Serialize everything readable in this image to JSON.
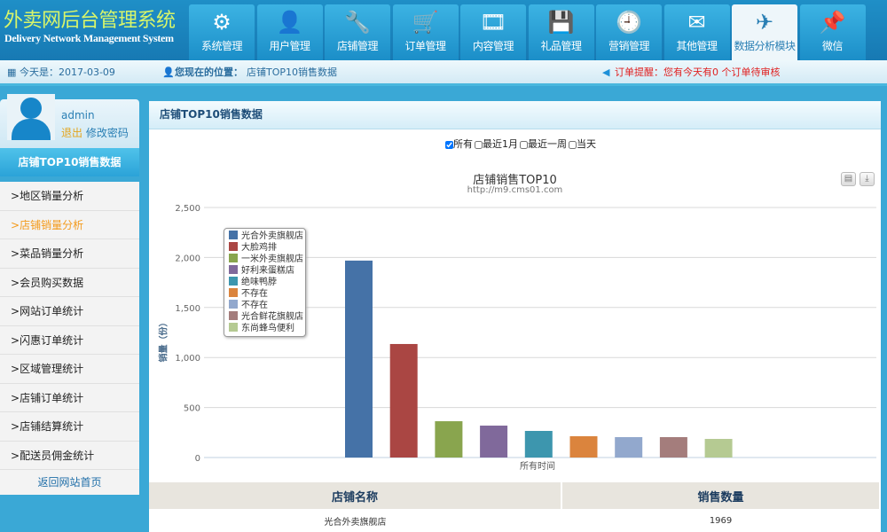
{
  "header": {
    "title": "外卖网后台管理系统",
    "subtitle": "Delivery Network Management System",
    "nav": [
      {
        "label": "系统管理",
        "icon": "gear-icon",
        "glyph": "⚙"
      },
      {
        "label": "用户管理",
        "icon": "user-icon",
        "glyph": "👤"
      },
      {
        "label": "店铺管理",
        "icon": "tools-icon",
        "glyph": "🔧"
      },
      {
        "label": "订单管理",
        "icon": "cart-icon",
        "glyph": "🛒"
      },
      {
        "label": "内容管理",
        "icon": "film-reel-icon",
        "glyph": "🎞"
      },
      {
        "label": "礼品管理",
        "icon": "save-download-icon",
        "glyph": "💾"
      },
      {
        "label": "营销管理",
        "icon": "clock-icon",
        "glyph": "🕘"
      },
      {
        "label": "其他管理",
        "icon": "mail-icon",
        "glyph": "✉"
      },
      {
        "label": "数据分析模块",
        "icon": "plane-icon",
        "glyph": "✈",
        "active": true
      },
      {
        "label": "微信",
        "icon": "pin-icon",
        "glyph": "📌"
      }
    ]
  },
  "infobar": {
    "date_label": "今天是：2017-03-09",
    "location_label": "您现在的位置：",
    "location": "店铺TOP10销售数据",
    "alert": "订单提醒：您有今天有0 个订单待审核"
  },
  "sidebar": {
    "username": "admin",
    "logout": "退出",
    "change_password": "修改密码",
    "title": "店铺TOP10销售数据",
    "items": [
      "地区销量分析",
      "店铺销量分析",
      "菜品销量分析",
      "会员购买数据",
      "网站订单统计",
      "闪惠订单统计",
      "区域管理统计",
      "店铺订单统计",
      "店铺结算统计",
      "配送员佣金统计"
    ],
    "selected": 1,
    "back": "返回网站首页"
  },
  "main": {
    "title": "店铺TOP10销售数据",
    "filters": [
      {
        "label": "所有",
        "checked": true
      },
      {
        "label": "最近1月",
        "checked": false
      },
      {
        "label": "最近一周",
        "checked": false
      },
      {
        "label": "当天",
        "checked": false
      }
    ],
    "table": {
      "headers": [
        "店铺名称",
        "销售数量"
      ],
      "rows": [
        [
          "光合外卖旗舰店",
          "1969"
        ]
      ]
    }
  },
  "chart_data": {
    "type": "bar",
    "title": "店铺销售TOP10",
    "subtitle": "http://m9.cms01.com",
    "xlabel": "所有时间",
    "ylabel": "销量（份）",
    "ylim": [
      0,
      2500
    ],
    "yticks": [
      "0",
      "500",
      "1,000",
      "1,500",
      "2,000",
      "2,500"
    ],
    "grid": true,
    "legend": "left",
    "series": [
      {
        "name": "光合外卖旗舰店",
        "value": 1969,
        "color": "#4572a7"
      },
      {
        "name": "大脸鸡排",
        "value": 1135,
        "color": "#aa4643"
      },
      {
        "name": "一米外卖旗舰店",
        "value": 363,
        "color": "#89a54e"
      },
      {
        "name": "好利来蛋糕店",
        "value": 319,
        "color": "#80699b"
      },
      {
        "name": "绝味鸭脖",
        "value": 266,
        "color": "#3d96ae"
      },
      {
        "name": "不存在",
        "value": 213,
        "color": "#db843d"
      },
      {
        "name": "不存在",
        "value": 204,
        "color": "#92a8cd"
      },
      {
        "name": "光合鲜花旗舰店",
        "value": 204,
        "color": "#a47d7c"
      },
      {
        "name": "东尚蜂鸟便利",
        "value": 186,
        "color": "#b5ca92"
      }
    ]
  }
}
